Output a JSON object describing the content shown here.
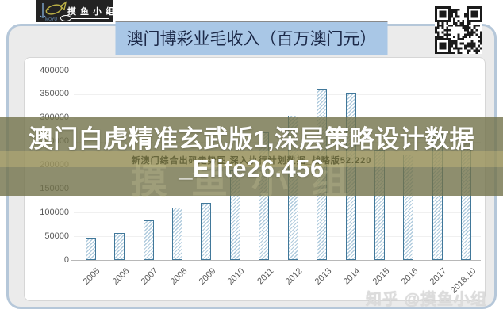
{
  "logo": {
    "brand_chars": "摸鱼小组",
    "sub": "MOYU"
  },
  "banner": {
    "title": "澳门博彩业毛收入（百万澳门元）"
  },
  "overlay": {
    "headline_line1": "澳门白虎精准玄武版1,深层策略设计数据",
    "headline_line2": "_Elite26.456",
    "sub_text": "新澳门综合出码走势图,深入执行计划数据_战略版52.220",
    "watermark_text": "摸鱼小组"
  },
  "footer_watermark": "知乎 @摸鱼小组",
  "colors": {
    "banner_bg": "#a9c7e6",
    "banner_text": "#1c2948",
    "card_border": "#b5c7d9",
    "card_bg": "#ebebeb",
    "bar_border": "#41789a",
    "bar_hatch": "#b0cbdd",
    "overlay_bg": "rgba(114,114,74,0.8)",
    "axis_text": "#595959"
  },
  "chart_data": {
    "type": "bar",
    "title": "澳门博彩业毛收入（百万澳门元）",
    "categories": [
      "2005",
      "2006",
      "2007",
      "2008",
      "2009",
      "2010",
      "2011",
      "2012",
      "2013",
      "2014",
      "2015",
      "2016",
      "2017",
      "2018.10"
    ],
    "values": [
      47000,
      57500,
      83800,
      109800,
      120400,
      189600,
      269100,
      305200,
      361900,
      352700,
      232100,
      223200,
      265700,
      250300
    ],
    "xlabel": "",
    "ylabel": "",
    "ylim": [
      0,
      400000
    ],
    "ytick_step": 50000,
    "grid": "horizontal-faint",
    "legend": "none"
  }
}
